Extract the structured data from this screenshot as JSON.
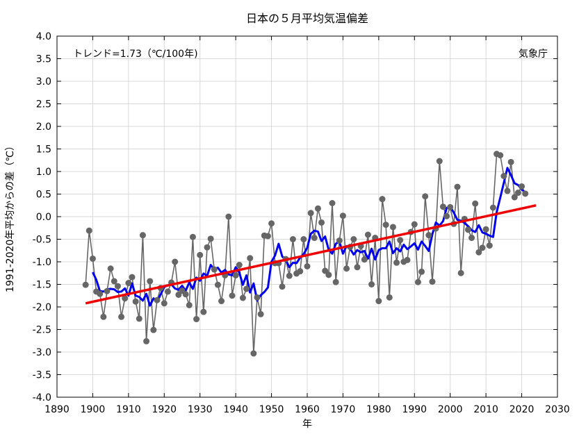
{
  "chart_data": {
    "type": "line",
    "title": "日本の５月平均気温偏差",
    "xlabel": "年",
    "ylabel": "1991-2020年平均からの差（℃）",
    "annotation_trend": "トレンド=1.73（℃/100年)",
    "source": "気象庁",
    "xlim": [
      1890,
      2030
    ],
    "ylim": [
      -4.0,
      4.0
    ],
    "x_ticks": [
      "1890",
      "1900",
      "1910",
      "1920",
      "1930",
      "1940",
      "1950",
      "1960",
      "1970",
      "1980",
      "1990",
      "2000",
      "2010",
      "2020",
      "2030"
    ],
    "y_ticks": [
      "4.0",
      "3.5",
      "3.0",
      "2.5",
      "2.0",
      "1.5",
      "1.0",
      "0.5",
      "0.0",
      "-0.5",
      "-1.0",
      "-1.5",
      "-2.0",
      "-2.5",
      "-3.0",
      "-3.5",
      "-4.0"
    ],
    "grid": true,
    "colors": {
      "annual": "#666666",
      "moving_average": "#0000ee",
      "trend": "#ee0000"
    },
    "series": [
      {
        "kind": "annual",
        "x_start": 1898,
        "values": [
          -1.51,
          -0.31,
          -0.93,
          -1.66,
          -1.71,
          -2.22,
          -1.65,
          -1.15,
          -1.43,
          -1.54,
          -2.22,
          -1.81,
          -1.47,
          -1.34,
          -1.88,
          -2.26,
          -0.41,
          -2.76,
          -1.43,
          -2.51,
          -1.85,
          -1.58,
          -1.92,
          -1.66,
          -1.46,
          -1.0,
          -1.73,
          -1.64,
          -1.72,
          -1.96,
          -0.45,
          -2.27,
          -0.85,
          -2.11,
          -0.68,
          -0.49,
          -1.17,
          -1.51,
          -1.87,
          -1.3,
          0.0,
          -1.75,
          -1.3,
          -1.07,
          -1.8,
          -1.6,
          -0.92,
          -3.03,
          -1.79,
          -2.16,
          -0.42,
          -0.43,
          -0.15,
          -1.03,
          -1.03,
          -1.55,
          -0.94,
          -1.31,
          -0.5,
          -1.26,
          -1.21,
          -0.5,
          -1.1,
          0.08,
          -0.47,
          0.18,
          -0.13,
          -1.2,
          -1.29,
          0.3,
          -1.45,
          -0.53,
          0.02,
          -1.15,
          -0.67,
          -0.5,
          -1.12,
          -0.65,
          -0.95,
          -0.4,
          -1.5,
          -0.47,
          -1.87,
          0.39,
          -0.18,
          -1.79,
          -0.23,
          -1.02,
          -0.52,
          -1.0,
          -0.96,
          -0.34,
          -0.17,
          -1.45,
          -1.22,
          0.45,
          -0.41,
          -1.44,
          -0.26,
          1.23,
          0.22,
          0.01,
          0.21,
          -0.16,
          0.66,
          -1.25,
          -0.05,
          -0.29,
          -0.47,
          0.29,
          -0.79,
          -0.69,
          -0.28,
          -0.64,
          0.2,
          1.39,
          1.36,
          0.9,
          0.57,
          1.21,
          0.43,
          0.53,
          0.67,
          0.51
        ]
      },
      {
        "kind": "moving_average",
        "x_start": 1900,
        "values": [
          -1.23,
          -1.4,
          -1.65,
          -1.66,
          -1.61,
          -1.6,
          -1.61,
          -1.67,
          -1.66,
          -1.59,
          -1.75,
          -1.48,
          -1.75,
          -1.78,
          -1.86,
          -1.71,
          -1.97,
          -1.81,
          -1.89,
          -1.72,
          -1.56,
          -1.52,
          -1.5,
          -1.59,
          -1.62,
          -1.53,
          -1.64,
          -1.46,
          -1.6,
          -1.35,
          -1.42,
          -1.26,
          -1.31,
          -1.07,
          -1.17,
          -1.13,
          -1.24,
          -1.18,
          -1.28,
          -1.3,
          -1.12,
          -1.24,
          -1.51,
          -1.3,
          -1.68,
          -1.48,
          -1.86,
          -1.74,
          -1.67,
          -1.57,
          -1.0,
          -0.86,
          -0.6,
          -0.88,
          -0.96,
          -1.12,
          -1.02,
          -1.03,
          -0.91,
          -0.83,
          -0.69,
          -0.38,
          -0.31,
          -0.33,
          -0.54,
          -0.44,
          -0.73,
          -0.82,
          -0.6,
          -0.55,
          -0.82,
          -0.65,
          -0.71,
          -0.84,
          -0.74,
          -0.79,
          -0.76,
          -0.93,
          -0.71,
          -0.95,
          -0.74,
          -0.7,
          -0.7,
          -0.55,
          -0.81,
          -0.7,
          -0.77,
          -0.62,
          -0.72,
          -0.66,
          -0.59,
          -0.73,
          -0.55,
          -0.65,
          -0.76,
          -0.39,
          -0.13,
          -0.2,
          -0.1,
          0.19,
          0.22,
          0.09,
          -0.07,
          -0.09,
          -0.14,
          -0.21,
          -0.3,
          -0.34,
          -0.19,
          -0.35,
          -0.38,
          -0.42,
          -0.45,
          0.1,
          0.42,
          0.75,
          1.08,
          0.92,
          0.74,
          0.7,
          0.6,
          0.54
        ]
      },
      {
        "kind": "trend",
        "x": [
          1898,
          2024
        ],
        "values": [
          -1.92,
          0.25
        ]
      }
    ]
  }
}
